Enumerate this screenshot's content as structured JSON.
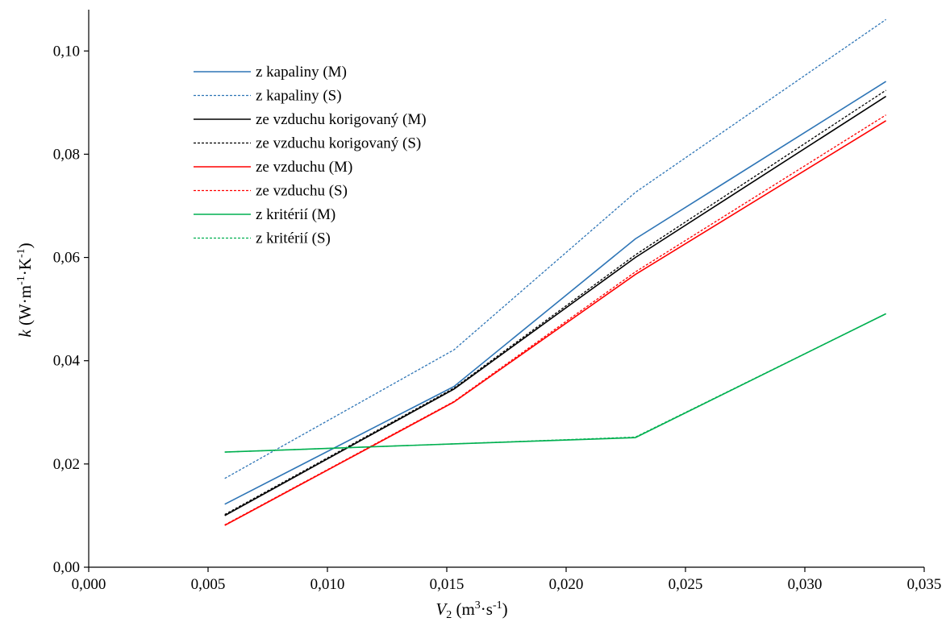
{
  "chart_data": {
    "type": "line",
    "title": "",
    "xlabel": {
      "symbol": "V",
      "sub": "2",
      "unit_open": " (m",
      "sup1": "3",
      "unit_mid": "·s",
      "sup2": "-1",
      "unit_close": ")"
    },
    "ylabel": {
      "symbol": "k",
      "unit_open": " (W·m",
      "sup1": "-1",
      "unit_mid": "·K",
      "sup2": "-1",
      "unit_close": ")"
    },
    "xlim": [
      0,
      0.035
    ],
    "ylim": [
      0,
      0.108
    ],
    "x_ticks": [
      "0,000",
      "0,005",
      "0,010",
      "0,015",
      "0,020",
      "0,025",
      "0,030",
      "0,035"
    ],
    "x_tick_values": [
      0,
      0.005,
      0.01,
      0.015,
      0.02,
      0.025,
      0.03,
      0.035
    ],
    "y_ticks": [
      "0,00",
      "0,02",
      "0,04",
      "0,06",
      "0,08",
      "0,10"
    ],
    "y_tick_values": [
      0,
      0.02,
      0.04,
      0.06,
      0.08,
      0.1
    ],
    "grid": false,
    "legend_position": "top-left",
    "x": [
      0.0057,
      0.0153,
      0.0229,
      0.0334
    ],
    "series": [
      {
        "name": "z kapaliny (M)",
        "color": "#2e75b6",
        "dashed": false,
        "values": [
          0.0122,
          0.035,
          0.0636,
          0.0941
        ]
      },
      {
        "name": "z kapaliny (S)",
        "color": "#2e75b6",
        "dashed": true,
        "values": [
          0.0172,
          0.0421,
          0.0726,
          0.1061
        ]
      },
      {
        "name": "ze vzduchu korigovaný (M)",
        "color": "#000000",
        "dashed": false,
        "values": [
          0.01,
          0.0345,
          0.06,
          0.0912
        ]
      },
      {
        "name": "ze vzduchu korigovaný (S)",
        "color": "#000000",
        "dashed": true,
        "values": [
          0.0102,
          0.0347,
          0.0605,
          0.0924
        ]
      },
      {
        "name": "ze vzduchu (M)",
        "color": "#ff0000",
        "dashed": false,
        "values": [
          0.0081,
          0.032,
          0.0567,
          0.0865
        ]
      },
      {
        "name": "ze vzduchu (S)",
        "color": "#ff0000",
        "dashed": true,
        "values": [
          0.0082,
          0.0321,
          0.0572,
          0.0876
        ]
      },
      {
        "name": "z kritérií (M)",
        "color": "#00b050",
        "dashed": false,
        "values": [
          0.0223,
          0.0239,
          0.0251,
          0.0491
        ]
      },
      {
        "name": "z kritérií (S)",
        "color": "#00b050",
        "dashed": true,
        "values": [
          0.0223,
          0.0239,
          0.0252,
          0.0491
        ]
      }
    ]
  }
}
